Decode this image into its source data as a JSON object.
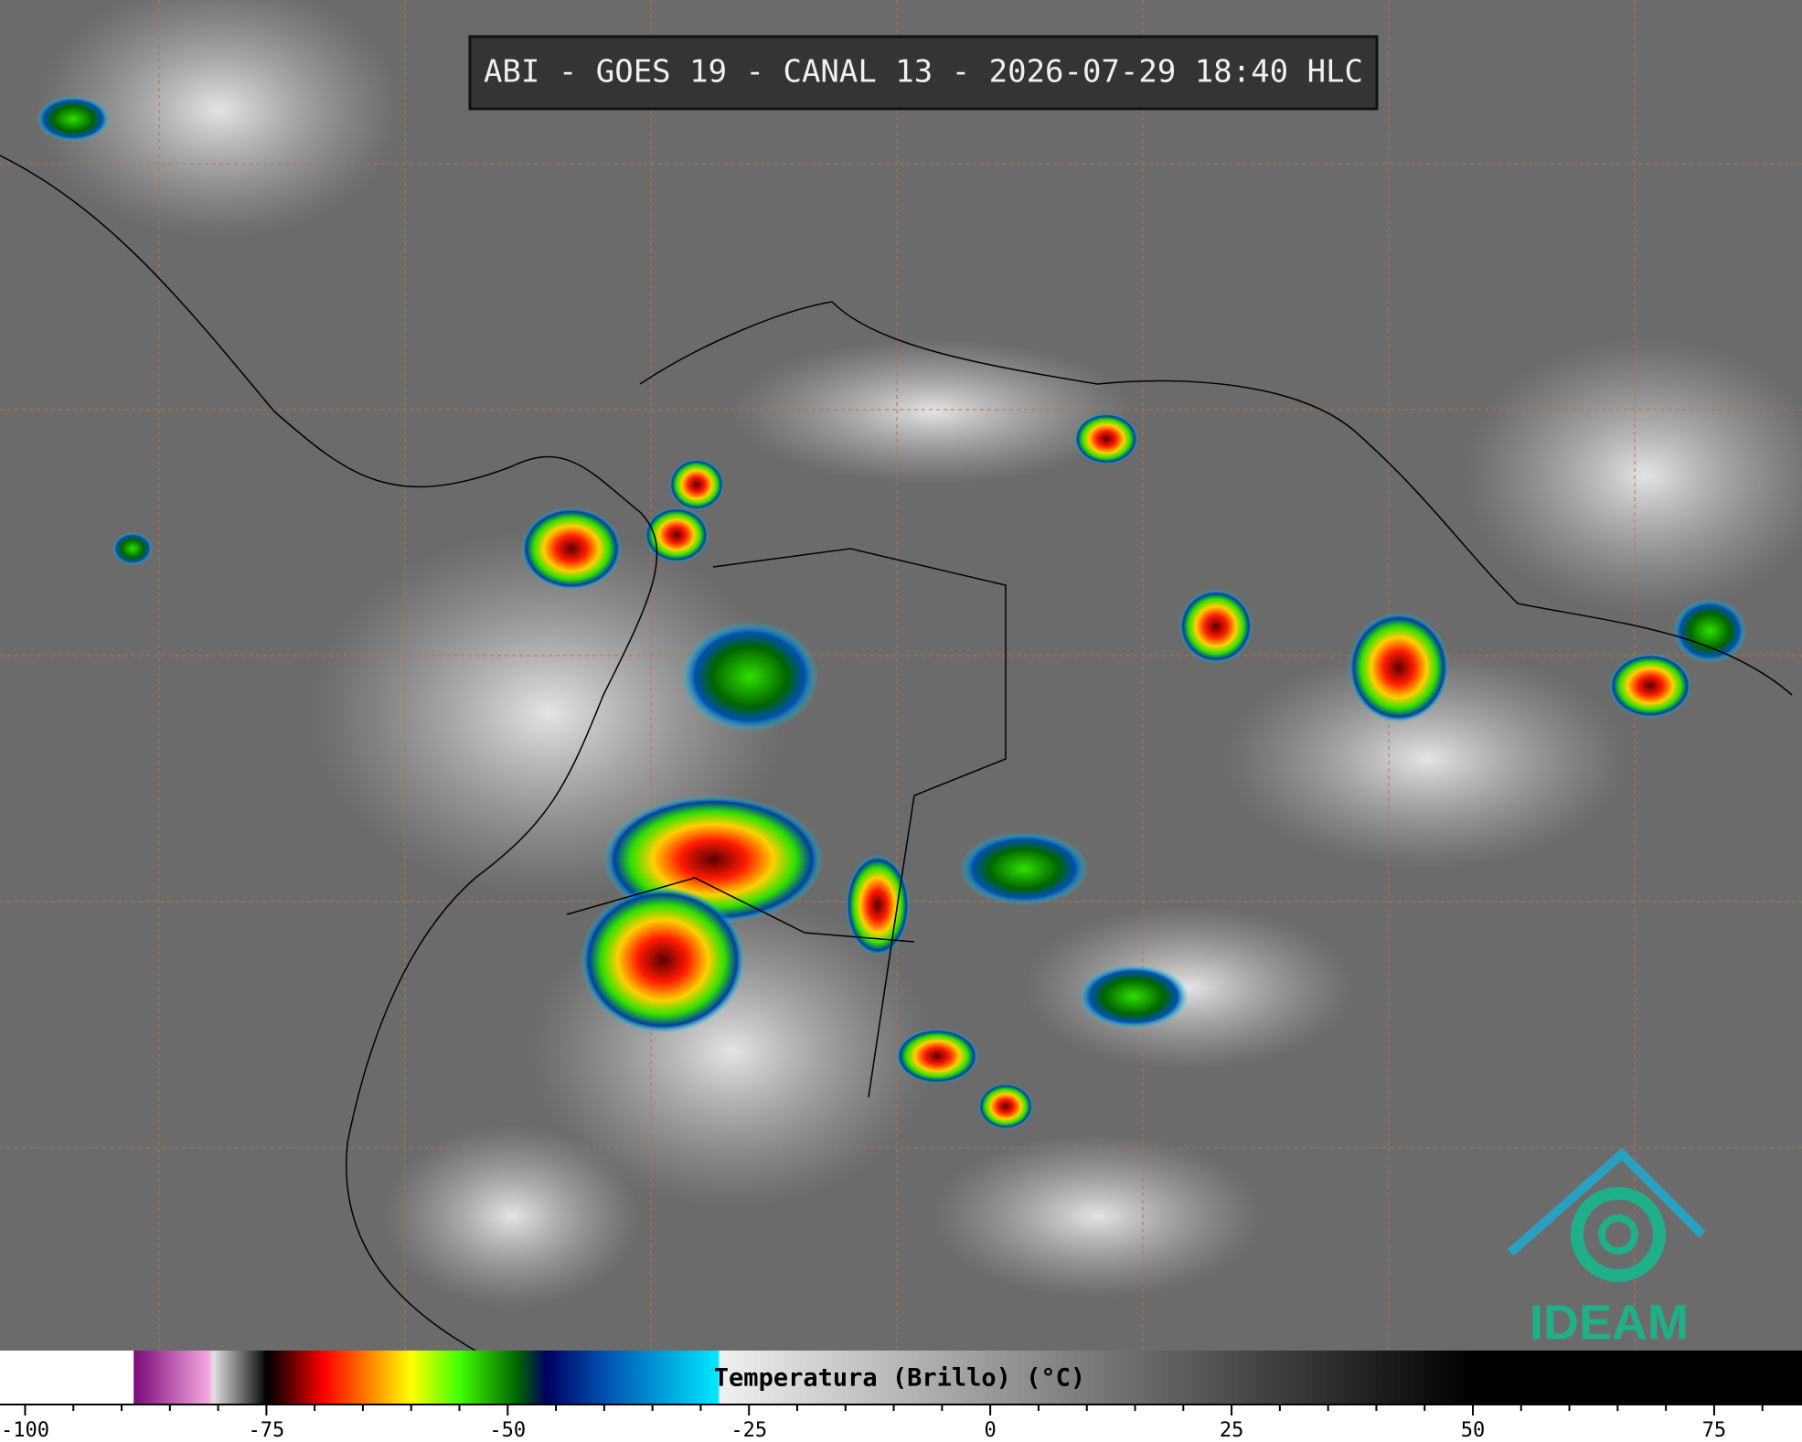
{
  "title": "ABI - GOES 19 - CANAL 13 - 2026-07-29 18:40 HLC",
  "logo": "IDEAM",
  "colorbar": {
    "label": "Temperatura (Brillo) (°C)",
    "lim": [
      -102.6,
      84.1
    ],
    "ticks": [
      -100,
      -75,
      -50,
      -25,
      0,
      25,
      50,
      75
    ],
    "minor_ticks": [
      -95,
      -90,
      -85,
      -80,
      -70,
      -65,
      -60,
      -55,
      -45,
      -40,
      -35,
      -30,
      -20,
      -15,
      -10,
      -5,
      5,
      10,
      15,
      20,
      30,
      35,
      40,
      45,
      55,
      60,
      65,
      70,
      80
    ],
    "stops": [
      {
        "value": -102.6,
        "color": "#ffffff"
      },
      {
        "value": -88.8,
        "color": "#ffffff"
      },
      {
        "value": -88.7,
        "color": "#7a0a7a"
      },
      {
        "value": -81,
        "color": "#f7a6e0"
      },
      {
        "value": -80.5,
        "color": "#e0e0e0"
      },
      {
        "value": -76,
        "color": "#303030"
      },
      {
        "value": -75,
        "color": "#000000"
      },
      {
        "value": -73,
        "color": "#4a0000"
      },
      {
        "value": -69,
        "color": "#ff0000"
      },
      {
        "value": -64,
        "color": "#ff8c00"
      },
      {
        "value": -60,
        "color": "#ffff00"
      },
      {
        "value": -55,
        "color": "#40ff00"
      },
      {
        "value": -49,
        "color": "#006400"
      },
      {
        "value": -46,
        "color": "#000060"
      },
      {
        "value": -40,
        "color": "#0050b0"
      },
      {
        "value": -28.2,
        "color": "#00e8ff"
      },
      {
        "value": -28,
        "color": "#f0f0f0"
      },
      {
        "value": 50,
        "color": "#000000"
      },
      {
        "value": 84.1,
        "color": "#000000"
      }
    ]
  }
}
